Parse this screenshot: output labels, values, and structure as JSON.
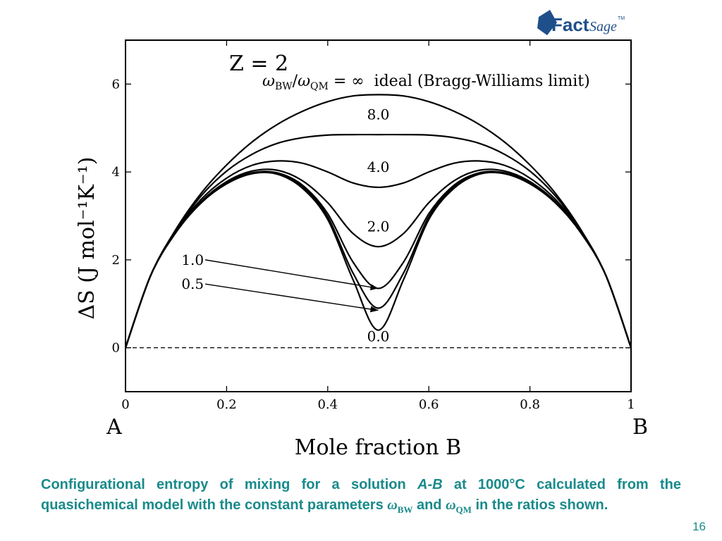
{
  "logo": {
    "text_main": "Fact",
    "text_second": "Sage",
    "tm": "TM",
    "color": "#1f4f8a"
  },
  "chart_data": {
    "type": "line",
    "title": "Z = 2",
    "xlabel": "Mole fraction B",
    "ylabel": "ΔS (J mol⁻¹K⁻¹)",
    "xlim": [
      0,
      1
    ],
    "ylim": [
      -1,
      7
    ],
    "xticks": [
      0,
      0.2,
      0.4,
      0.6,
      0.8,
      1
    ],
    "xtick_labels": [
      "0",
      "0.2",
      "0.4",
      "0.6",
      "0.8",
      "1"
    ],
    "yticks": [
      0,
      2,
      4,
      6
    ],
    "ytick_labels": [
      "0",
      "2",
      "4",
      "6"
    ],
    "end_labels": {
      "left": "A",
      "right": "B"
    },
    "reference_line": {
      "y": 0,
      "style": "dashed"
    },
    "x": [
      0,
      0.05,
      0.1,
      0.15,
      0.2,
      0.25,
      0.3,
      0.35,
      0.4,
      0.45,
      0.5,
      0.55,
      0.6,
      0.65,
      0.7,
      0.75,
      0.8,
      0.85,
      0.9,
      0.95,
      1
    ],
    "series": [
      {
        "name": "ωBW/ωQM = ∞ ideal (Bragg-Williams limit)",
        "values": [
          0,
          1.65,
          2.7,
          3.52,
          4.16,
          4.68,
          5.08,
          5.38,
          5.6,
          5.73,
          5.76,
          5.73,
          5.6,
          5.38,
          5.08,
          4.68,
          4.16,
          3.52,
          2.7,
          1.65,
          0
        ]
      },
      {
        "name": "8.0",
        "values": [
          0,
          1.65,
          2.68,
          3.46,
          4.02,
          4.4,
          4.65,
          4.78,
          4.84,
          4.85,
          4.85,
          4.85,
          4.84,
          4.78,
          4.65,
          4.4,
          4.02,
          3.46,
          2.68,
          1.65,
          0
        ]
      },
      {
        "name": "4.0",
        "values": [
          0,
          1.65,
          2.66,
          3.38,
          3.86,
          4.15,
          4.25,
          4.2,
          4.0,
          3.75,
          3.65,
          3.75,
          4.0,
          4.2,
          4.25,
          4.15,
          3.86,
          3.38,
          2.66,
          1.65,
          0
        ]
      },
      {
        "name": "2.0",
        "values": [
          0,
          1.65,
          2.64,
          3.33,
          3.78,
          4.02,
          4.04,
          3.8,
          3.3,
          2.6,
          2.3,
          2.6,
          3.3,
          3.8,
          4.04,
          4.02,
          3.78,
          3.33,
          2.64,
          1.65,
          0
        ]
      },
      {
        "name": "1.0",
        "values": [
          0,
          1.65,
          2.63,
          3.31,
          3.75,
          3.98,
          3.98,
          3.7,
          3.05,
          1.95,
          1.35,
          1.95,
          3.05,
          3.7,
          3.98,
          3.98,
          3.75,
          3.31,
          2.63,
          1.65,
          0
        ]
      },
      {
        "name": "0.5",
        "values": [
          0,
          1.65,
          2.63,
          3.31,
          3.74,
          3.97,
          3.96,
          3.66,
          2.98,
          1.7,
          0.9,
          1.7,
          2.98,
          3.66,
          3.96,
          3.97,
          3.74,
          3.31,
          2.63,
          1.65,
          0
        ]
      },
      {
        "name": "0.0",
        "values": [
          0,
          1.65,
          2.63,
          3.3,
          3.73,
          3.96,
          3.95,
          3.63,
          2.92,
          1.55,
          0.4,
          1.55,
          2.92,
          3.63,
          3.95,
          3.96,
          3.73,
          3.3,
          2.63,
          1.65,
          0
        ]
      }
    ],
    "labels": [
      {
        "text": "8.0",
        "x": 0.5,
        "y": 5.2
      },
      {
        "text": "4.0",
        "x": 0.5,
        "y": 4.0
      },
      {
        "text": "2.0",
        "x": 0.5,
        "y": 2.65
      },
      {
        "text": "0.0",
        "x": 0.5,
        "y": 0.15
      }
    ],
    "arrow_labels": [
      {
        "text": "1.0",
        "label_x": 0.155,
        "label_y": 2.0,
        "to_x": 0.5,
        "to_y": 1.35
      },
      {
        "text": "0.5",
        "label_x": 0.155,
        "label_y": 1.45,
        "to_x": 0.5,
        "to_y": 0.85
      }
    ],
    "annotation_ratio": {
      "omega": "ω",
      "sub_bw": "BW",
      "slash": "/",
      "sub_qm": "QM",
      "rest": " = ∞  ideal (Bragg-Williams limit)"
    }
  },
  "caption": {
    "part1": "Configurational entropy of mixing for a solution ",
    "a": "A",
    "dash": "-",
    "b": "B",
    "part2": " at 1000°C calculated from the quasichemical model with the constant parameters ",
    "omega1": "ω",
    "sub1": "BW",
    "and": " and ",
    "omega2": "ω",
    "sub2": "QM",
    "part3": " in the ratios shown."
  },
  "page_number": "16"
}
